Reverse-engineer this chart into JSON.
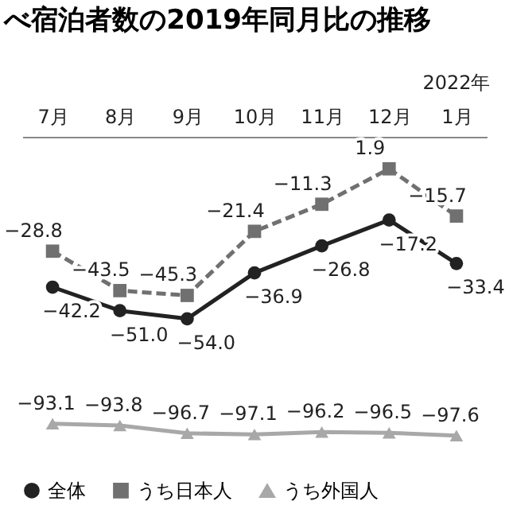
{
  "chart_data": {
    "type": "line",
    "title": "べ宿泊者数の2019年同月比の推移",
    "annotations": [
      "2022年"
    ],
    "categories": [
      "7月",
      "8月",
      "9月",
      "10月",
      "11月",
      "12月",
      "1月"
    ],
    "series": [
      {
        "name": "全体",
        "color": "#222222",
        "marker": "circle",
        "line_style": "solid",
        "values": [
          -42.2,
          -51.0,
          -54.0,
          -36.9,
          -26.8,
          -17.2,
          -33.4
        ],
        "value_labels": [
          "−42.2",
          "−51.0",
          "−54.0",
          "−36.9",
          "−26.8",
          "−17.2",
          "−33.4"
        ]
      },
      {
        "name": "うち日本人",
        "color": "#707070",
        "marker": "square",
        "line_style": "dashed",
        "values": [
          -28.8,
          -43.5,
          -45.3,
          -21.4,
          -11.3,
          1.9,
          -15.7
        ],
        "value_labels": [
          "−28.8",
          "−43.5",
          "−45.3",
          "−21.4",
          "−11.3",
          "1.9",
          "−15.7"
        ]
      },
      {
        "name": "うち外国人",
        "color": "#a8a8a8",
        "marker": "triangle",
        "line_style": "solid",
        "values": [
          -93.1,
          -93.8,
          -96.7,
          -97.1,
          -96.2,
          -96.5,
          -97.6
        ],
        "value_labels": [
          "−93.1",
          "−93.8",
          "−96.7",
          "−97.1",
          "−96.2",
          "−96.5",
          "−97.6"
        ]
      }
    ],
    "grid": false,
    "legend": "bottom"
  }
}
